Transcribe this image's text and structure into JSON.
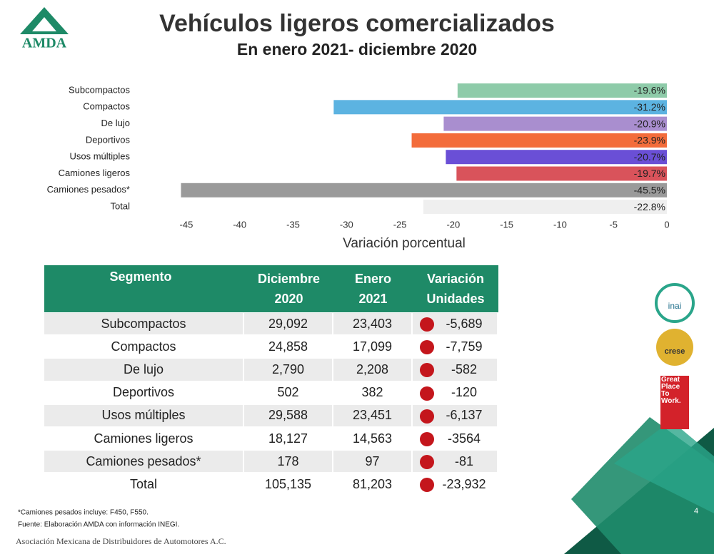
{
  "logo": "AMDA",
  "chart_data": {
    "type": "bar",
    "orientation": "horizontal",
    "title": "Vehículos ligeros comercializados",
    "subtitle": "En enero 2021- diciembre 2020",
    "categories": [
      "Subcompactos",
      "Compactos",
      "De lujo",
      "Deportivos",
      "Usos múltiples",
      "Camiones ligeros",
      "Camiones pesados*",
      "Total"
    ],
    "values": [
      -19.6,
      -31.2,
      -20.9,
      -23.9,
      -20.7,
      -19.7,
      -45.5,
      -22.8
    ],
    "value_labels": [
      "-19.6%",
      "-31.2%",
      "-20.9%",
      "-23.9%",
      "-20.7%",
      "-19.7%",
      "-45.5%",
      "-22.8%"
    ],
    "colors": [
      "#8ecba9",
      "#5cb3e1",
      "#a98ecf",
      "#f36c3b",
      "#6a4fd6",
      "#d9535b",
      "#9a9a9a",
      "#efefef"
    ],
    "xlabel": "Variación porcentual",
    "xlim": [
      -46,
      0
    ],
    "xticks": [
      -45,
      -40,
      -35,
      -30,
      -25,
      -20,
      -15,
      -10,
      -5,
      0
    ],
    "grid": false
  },
  "table": {
    "header": [
      "Segmento",
      "Diciembre 2020",
      "Enero 2021",
      "Variación Unidades"
    ],
    "rows": [
      [
        "Subcompactos",
        "29,092",
        "23,403",
        "-5,689"
      ],
      [
        "Compactos",
        "24,858",
        "17,099",
        "-7,759"
      ],
      [
        "De lujo",
        "2,790",
        "2,208",
        "-582"
      ],
      [
        "Deportivos",
        "502",
        "382",
        "-120"
      ],
      [
        "Usos múltiples",
        "29,588",
        "23,451",
        "-6,137"
      ],
      [
        "Camiones ligeros",
        "18,127",
        "14,563",
        "-3564"
      ],
      [
        "Camiones pesados*",
        "178",
        "97",
        "-81"
      ],
      [
        "Total",
        "105,135",
        "81,203",
        "-23,932"
      ]
    ]
  },
  "badges": [
    "inai",
    "crese",
    "Great Place To Work."
  ],
  "footnotes": [
    "*Camiones pesados incluye: F450, F550.",
    "Fuente: Elaboración AMDA con información INEGI."
  ],
  "footer": "Asociación Mexicana de Distribuidores de Automotores A.C.",
  "page_number": "4"
}
